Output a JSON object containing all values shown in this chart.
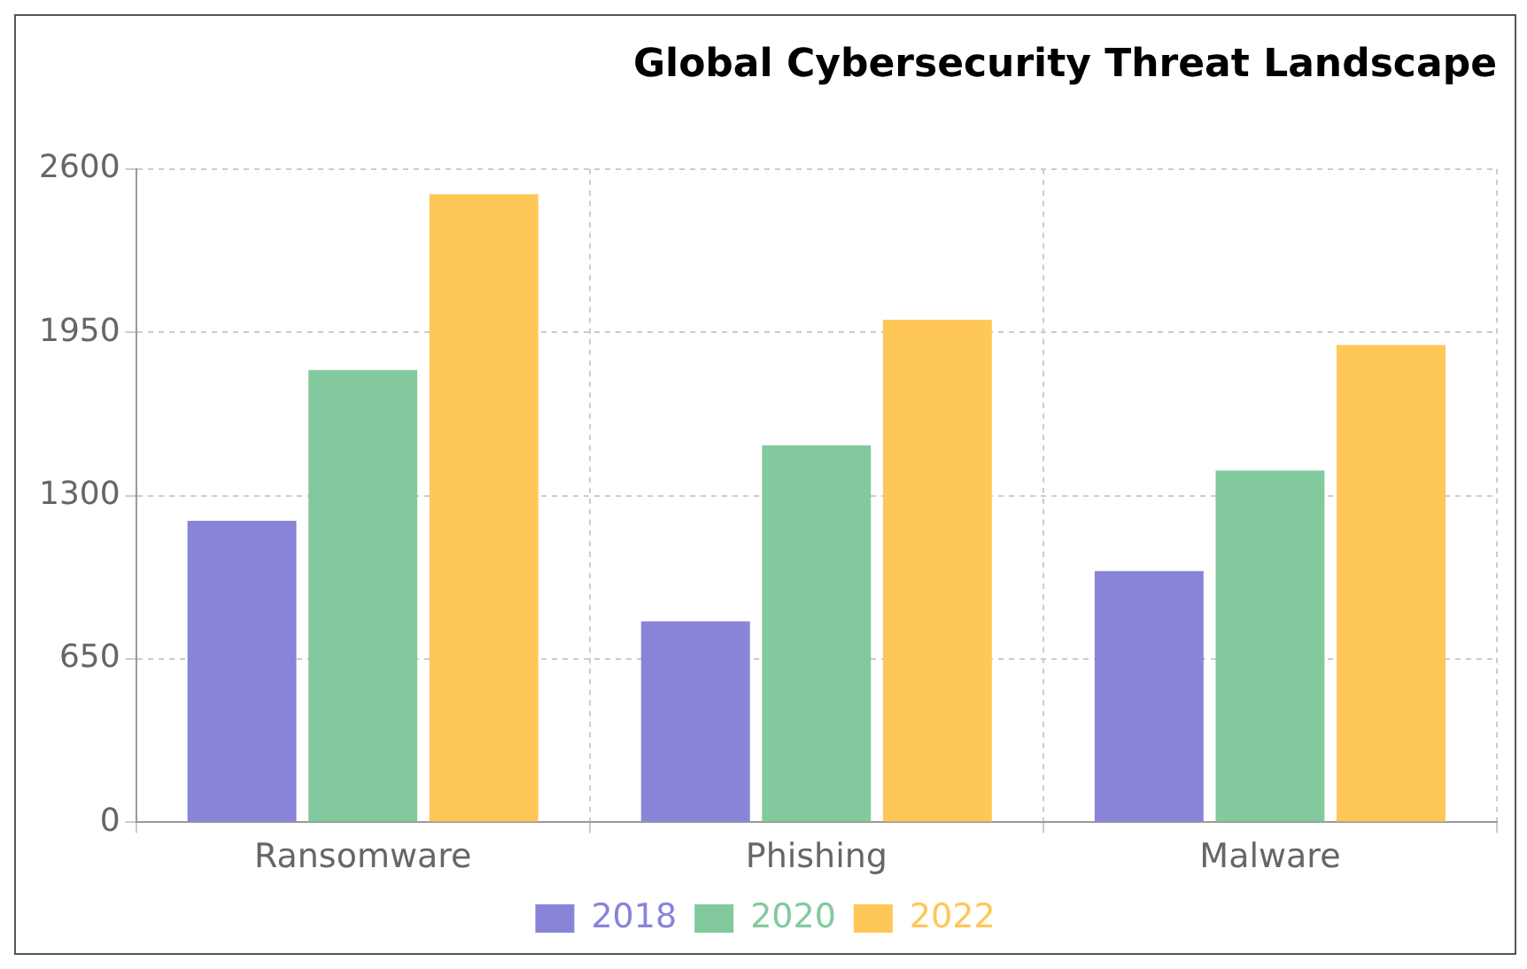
{
  "chart_data": {
    "type": "bar",
    "title": "Global Cybersecurity Threat Landscape",
    "categories": [
      "Ransomware",
      "Phishing",
      "Malware"
    ],
    "series": [
      {
        "name": "2018",
        "color": "#8884d8",
        "values": [
          1200,
          800,
          1000
        ]
      },
      {
        "name": "2020",
        "color": "#82ca9d",
        "values": [
          1800,
          1500,
          1400
        ]
      },
      {
        "name": "2022",
        "color": "#ffc658",
        "values": [
          2500,
          2000,
          1900
        ]
      }
    ],
    "ylim": [
      0,
      2600
    ],
    "yticks": [
      0,
      650,
      1300,
      1950,
      2600
    ],
    "grid": true,
    "legend": "bottom"
  }
}
